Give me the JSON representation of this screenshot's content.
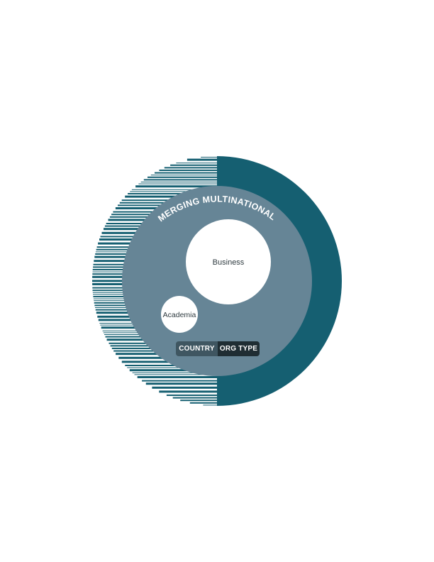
{
  "diagram": {
    "outer_label": "EMERGING MULTINATIONALS",
    "nodes": [
      {
        "label": "Business"
      },
      {
        "label": "Academia"
      }
    ]
  },
  "toggle": {
    "options": [
      {
        "label": "COUNTRY",
        "active": false
      },
      {
        "label": "ORG TYPE",
        "active": true
      }
    ]
  },
  "colors": {
    "outer_ring": "#155f71",
    "inner_disc": "#668596",
    "node_fill": "#ffffff",
    "toggle_inactive": "#3f5661",
    "toggle_active": "#1f2d33"
  }
}
